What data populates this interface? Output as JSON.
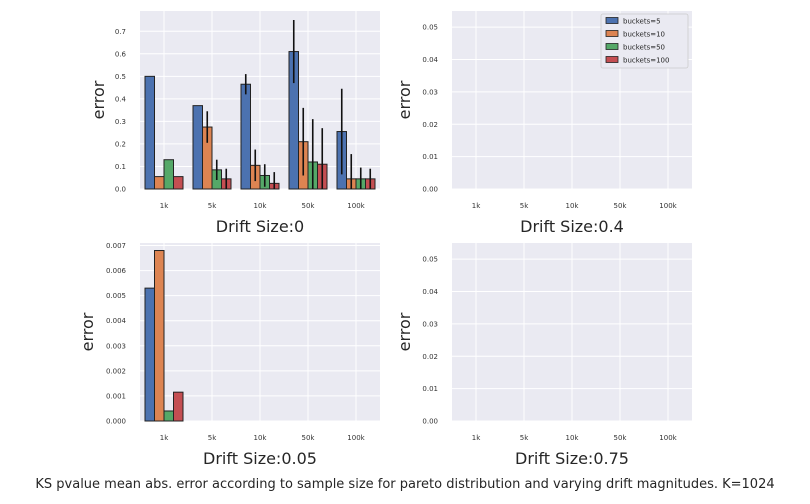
{
  "caption": "KS pvalue mean abs. error according to sample size for pareto distribution and varying drift magnitudes. K=1024",
  "colors": {
    "background": "#eaeaf2",
    "grid": "#ffffff",
    "series": [
      "#4c72b0",
      "#dd8452",
      "#55a868",
      "#c44e52"
    ]
  },
  "chart_data": [
    {
      "type": "bar",
      "title": "",
      "xlabel": "Drift Size:0",
      "ylabel": "error",
      "ylim": [
        0,
        0.79
      ],
      "yticks": [
        "0.0",
        "0.1",
        "0.2",
        "0.3",
        "0.4",
        "0.5",
        "0.6",
        "0.7"
      ],
      "yticks_values": [
        0,
        0.1,
        0.2,
        0.3,
        0.4,
        0.5,
        0.6,
        0.7
      ],
      "categories": [
        "1k",
        "5k",
        "10k",
        "50k",
        "100k"
      ],
      "grid": true,
      "legend": false,
      "series": [
        {
          "name": "buckets=5",
          "values": [
            0.5,
            0.37,
            0.465,
            0.61,
            0.255
          ],
          "errors": [
            0,
            0,
            0.045,
            0.14,
            0.19
          ]
        },
        {
          "name": "buckets=10",
          "values": [
            0.055,
            0.275,
            0.105,
            0.21,
            0.045
          ],
          "errors": [
            0,
            0.07,
            0.07,
            0.15,
            0.11
          ]
        },
        {
          "name": "buckets=50",
          "values": [
            0.13,
            0.085,
            0.06,
            0.12,
            0.045
          ],
          "errors": [
            0,
            0.045,
            0.05,
            0.19,
            0.05
          ]
        },
        {
          "name": "buckets=100",
          "values": [
            0.055,
            0.045,
            0.025,
            0.11,
            0.045
          ],
          "errors": [
            0,
            0.045,
            0.05,
            0.16,
            0.045
          ]
        }
      ]
    },
    {
      "type": "bar",
      "title": "",
      "xlabel": "Drift Size:0.4",
      "ylabel": "error",
      "ylim": [
        0,
        0.055
      ],
      "yticks": [
        "0.00",
        "0.01",
        "0.02",
        "0.03",
        "0.04",
        "0.05"
      ],
      "yticks_values": [
        0,
        0.01,
        0.02,
        0.03,
        0.04,
        0.05
      ],
      "categories": [
        "1k",
        "5k",
        "10k",
        "50k",
        "100k"
      ],
      "grid": true,
      "legend": "top-right",
      "series": [
        {
          "name": "buckets=5",
          "values": [
            0,
            0,
            0,
            0,
            0
          ]
        },
        {
          "name": "buckets=10",
          "values": [
            0,
            0,
            0,
            0,
            0
          ]
        },
        {
          "name": "buckets=50",
          "values": [
            0,
            0,
            0,
            0,
            0
          ]
        },
        {
          "name": "buckets=100",
          "values": [
            0,
            0,
            0,
            0,
            0
          ]
        }
      ]
    },
    {
      "type": "bar",
      "title": "",
      "xlabel": "Drift Size:0.05",
      "ylabel": "error",
      "ylim": [
        0,
        0.0071
      ],
      "yticks": [
        "0.000",
        "0.001",
        "0.002",
        "0.003",
        "0.004",
        "0.005",
        "0.006",
        "0.007"
      ],
      "yticks_values": [
        0,
        0.001,
        0.002,
        0.003,
        0.004,
        0.005,
        0.006,
        0.007
      ],
      "categories": [
        "1k",
        "5k",
        "10k",
        "50k",
        "100k"
      ],
      "grid": true,
      "legend": false,
      "series": [
        {
          "name": "buckets=5",
          "values": [
            0.0053,
            0,
            0,
            0,
            0
          ]
        },
        {
          "name": "buckets=10",
          "values": [
            0.0068,
            0,
            0,
            0,
            0
          ]
        },
        {
          "name": "buckets=50",
          "values": [
            0.0004,
            0,
            0,
            0,
            0
          ]
        },
        {
          "name": "buckets=100",
          "values": [
            0.00115,
            0,
            0,
            0,
            0
          ]
        }
      ]
    },
    {
      "type": "bar",
      "title": "",
      "xlabel": "Drift Size:0.75",
      "ylabel": "error",
      "ylim": [
        0,
        0.055
      ],
      "yticks": [
        "0.00",
        "0.01",
        "0.02",
        "0.03",
        "0.04",
        "0.05"
      ],
      "yticks_values": [
        0,
        0.01,
        0.02,
        0.03,
        0.04,
        0.05
      ],
      "categories": [
        "1k",
        "5k",
        "10k",
        "50k",
        "100k"
      ],
      "grid": true,
      "legend": false,
      "series": [
        {
          "name": "buckets=5",
          "values": [
            0,
            0,
            0,
            0,
            0
          ]
        },
        {
          "name": "buckets=10",
          "values": [
            0,
            0,
            0,
            0,
            0
          ]
        },
        {
          "name": "buckets=50",
          "values": [
            0,
            0,
            0,
            0,
            0
          ]
        },
        {
          "name": "buckets=100",
          "values": [
            0,
            0,
            0,
            0,
            0
          ]
        }
      ]
    }
  ]
}
